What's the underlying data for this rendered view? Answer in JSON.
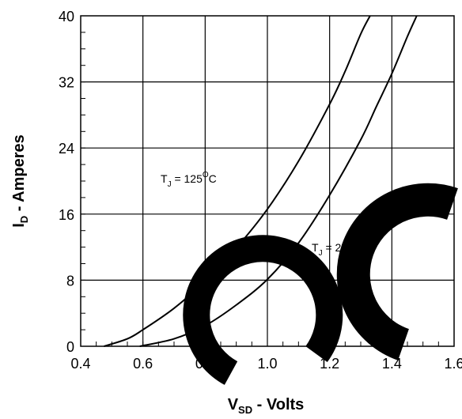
{
  "chart_data": {
    "type": "line",
    "xlabel": {
      "main": "V",
      "sub": "SD",
      "rest": "  -  Volts"
    },
    "ylabel": {
      "main": "I",
      "sub": "D",
      "rest": " - Amperes"
    },
    "xlim": [
      0.4,
      1.6
    ],
    "ylim": [
      0,
      40
    ],
    "x_ticks": [
      "0.4",
      "0.6",
      "0.8",
      "1.0",
      "1.2",
      "1.4",
      "1.6"
    ],
    "y_ticks": [
      "0",
      "8",
      "16",
      "24",
      "32",
      "40"
    ],
    "grid": true,
    "series": [
      {
        "name": "T_J = 125°C",
        "x": [
          0.475,
          0.55,
          0.6,
          0.7,
          0.8,
          0.9,
          1.0,
          1.1,
          1.2,
          1.25,
          1.3,
          1.33
        ],
        "y": [
          0,
          0.9,
          2.0,
          4.6,
          7.9,
          11.9,
          16.6,
          22.4,
          29.3,
          33.3,
          37.8,
          40
        ]
      },
      {
        "name": "T_J = 25°C",
        "x": [
          0.59,
          0.7,
          0.8,
          0.9,
          1.0,
          1.1,
          1.2,
          1.3,
          1.35,
          1.4,
          1.45,
          1.48
        ],
        "y": [
          0,
          0.9,
          2.5,
          5.0,
          8.1,
          12.5,
          18.3,
          25.0,
          29.0,
          33.0,
          37.5,
          40
        ]
      }
    ],
    "annotations": [
      {
        "main": "T",
        "sub": "J",
        "rest": " = 125",
        "sup": "O",
        "unit": "C"
      },
      {
        "main": "T",
        "sub": "J",
        "rest": " = 25",
        "sup": "O",
        "unit": "C"
      }
    ]
  },
  "colors": {
    "line": "#000000",
    "grid": "#000000",
    "watermark": "#000000"
  },
  "watermark": {
    "text": "SC"
  }
}
